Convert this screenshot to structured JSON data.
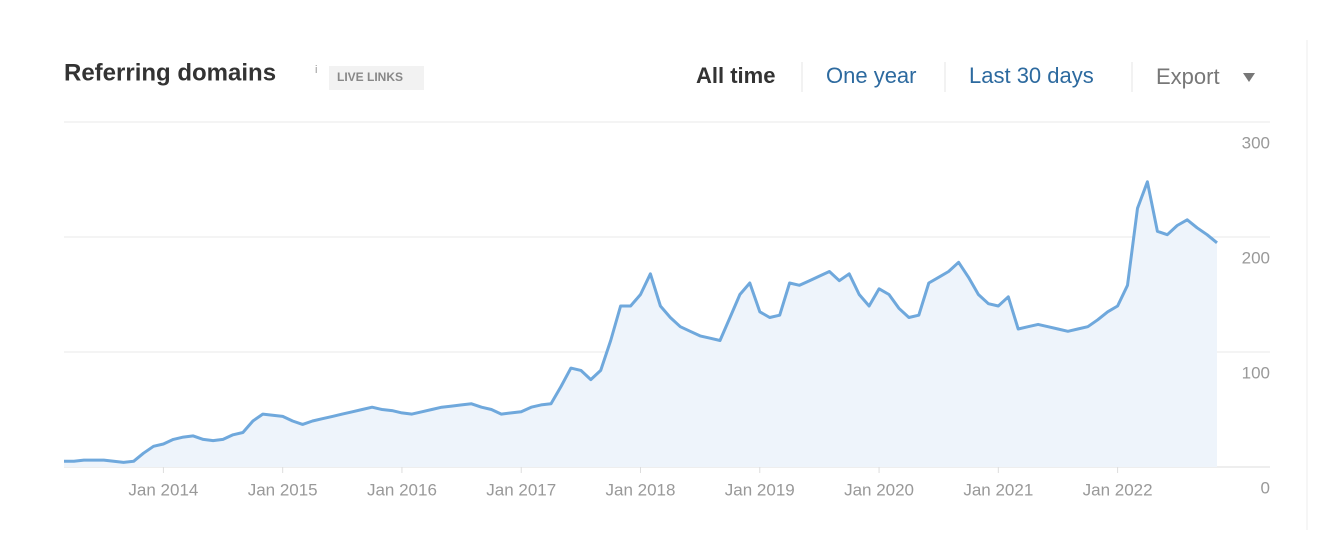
{
  "chart_data": {
    "type": "line",
    "title": "Referring domains",
    "info": "i",
    "subtitle": "LIVE LINKS",
    "x": [
      "2013-03",
      "2013-04",
      "2013-05",
      "2013-06",
      "2013-07",
      "2013-08",
      "2013-09",
      "2013-10",
      "2013-11",
      "2013-12",
      "2014-01",
      "2014-02",
      "2014-03",
      "2014-04",
      "2014-05",
      "2014-06",
      "2014-07",
      "2014-08",
      "2014-09",
      "2014-10",
      "2014-11",
      "2014-12",
      "2015-01",
      "2015-02",
      "2015-03",
      "2015-04",
      "2015-05",
      "2015-06",
      "2015-07",
      "2015-08",
      "2015-09",
      "2015-10",
      "2015-11",
      "2015-12",
      "2016-01",
      "2016-02",
      "2016-03",
      "2016-04",
      "2016-05",
      "2016-06",
      "2016-07",
      "2016-08",
      "2016-09",
      "2016-10",
      "2016-11",
      "2016-12",
      "2017-01",
      "2017-02",
      "2017-03",
      "2017-04",
      "2017-05",
      "2017-06",
      "2017-07",
      "2017-08",
      "2017-09",
      "2017-10",
      "2017-11",
      "2017-12",
      "2018-01",
      "2018-02",
      "2018-03",
      "2018-04",
      "2018-05",
      "2018-06",
      "2018-07",
      "2018-08",
      "2018-09",
      "2018-10",
      "2018-11",
      "2018-12",
      "2019-01",
      "2019-02",
      "2019-03",
      "2019-04",
      "2019-05",
      "2019-06",
      "2019-07",
      "2019-08",
      "2019-09",
      "2019-10",
      "2019-11",
      "2019-12",
      "2020-01",
      "2020-02",
      "2020-03",
      "2020-04",
      "2020-05",
      "2020-06",
      "2020-07",
      "2020-08",
      "2020-09",
      "2020-10",
      "2020-11",
      "2020-12",
      "2021-01",
      "2021-02",
      "2021-03",
      "2021-04",
      "2021-05",
      "2021-06",
      "2021-07",
      "2021-08",
      "2021-09",
      "2021-10",
      "2021-11",
      "2021-12",
      "2022-01",
      "2022-02",
      "2022-03",
      "2022-04",
      "2022-05",
      "2022-06",
      "2022-07",
      "2022-08",
      "2022-09",
      "2022-10",
      "2022-11"
    ],
    "series": [
      {
        "name": "Referring domains",
        "color": "#6fa8dc",
        "values": [
          5,
          5,
          6,
          6,
          6,
          5,
          4,
          5,
          12,
          18,
          20,
          24,
          26,
          27,
          24,
          23,
          24,
          28,
          30,
          40,
          46,
          45,
          44,
          40,
          37,
          40,
          42,
          44,
          46,
          48,
          50,
          52,
          50,
          49,
          47,
          46,
          48,
          50,
          52,
          53,
          54,
          55,
          52,
          50,
          46,
          47,
          48,
          52,
          54,
          55,
          70,
          86,
          84,
          76,
          84,
          110,
          140,
          140,
          150,
          168,
          140,
          130,
          122,
          118,
          114,
          112,
          110,
          130,
          150,
          160,
          135,
          130,
          132,
          160,
          158,
          162,
          166,
          170,
          162,
          168,
          150,
          140,
          155,
          150,
          138,
          130,
          132,
          160,
          165,
          170,
          178,
          165,
          150,
          142,
          140,
          148,
          120,
          122,
          124,
          122,
          120,
          118,
          120,
          122,
          128,
          135,
          140,
          158,
          225,
          248,
          205,
          202,
          210,
          215,
          208,
          202,
          195
        ]
      }
    ],
    "xlim": [
      "2013-03",
      "2022-11"
    ],
    "xticks": [
      {
        "value": "2014-01",
        "label": "Jan 2014"
      },
      {
        "value": "2015-01",
        "label": "Jan 2015"
      },
      {
        "value": "2016-01",
        "label": "Jan 2016"
      },
      {
        "value": "2017-01",
        "label": "Jan 2017"
      },
      {
        "value": "2018-01",
        "label": "Jan 2018"
      },
      {
        "value": "2019-01",
        "label": "Jan 2019"
      },
      {
        "value": "2020-01",
        "label": "Jan 2020"
      },
      {
        "value": "2021-01",
        "label": "Jan 2021"
      },
      {
        "value": "2022-01",
        "label": "Jan 2022"
      }
    ],
    "ylim": [
      0,
      300
    ],
    "yticks": [
      0,
      100,
      200,
      300
    ],
    "grid": true
  },
  "toolbar": {
    "ranges": [
      "All time",
      "One year",
      "Last 30 days"
    ],
    "export": "Export"
  }
}
